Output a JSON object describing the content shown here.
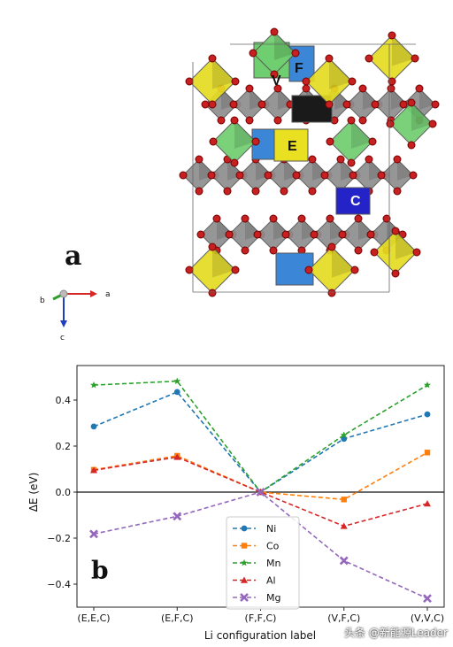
{
  "figure": {
    "panel_a_label": "a",
    "panel_b_label": "b",
    "axes_indicator": {
      "a": "a",
      "b": "b",
      "c": "c"
    },
    "site_labels": [
      "V",
      "F",
      "E",
      "C"
    ],
    "watermark": "头条 @新能源Leader"
  },
  "chart_data": {
    "type": "line",
    "title": "",
    "xlabel": "Li configuration label",
    "ylabel": "ΔE (eV)",
    "categories": [
      "(E,E,C)",
      "(E,F,C)",
      "(F,F,C)",
      "(V,F,C)",
      "(V,V,C)"
    ],
    "ylim": [
      -0.5,
      0.55
    ],
    "yticks": [
      -0.4,
      -0.2,
      0.0,
      0.2,
      0.4
    ],
    "ytick_labels": [
      "−0.4",
      "−0.2",
      "0.0",
      "0.2",
      "0.4"
    ],
    "grid": false,
    "legend_position": "lower-center",
    "series": [
      {
        "name": "Ni",
        "color": "#1f77b4",
        "marker": "circle",
        "values": [
          0.285,
          0.435,
          0.0,
          0.232,
          0.338
        ]
      },
      {
        "name": "Co",
        "color": "#ff7f0e",
        "marker": "square",
        "values": [
          0.097,
          0.158,
          0.0,
          -0.032,
          0.172
        ]
      },
      {
        "name": "Mn",
        "color": "#2ca02c",
        "marker": "star",
        "values": [
          0.465,
          0.482,
          0.0,
          0.248,
          0.465
        ]
      },
      {
        "name": "Al",
        "color": "#d62728",
        "marker": "triangle",
        "values": [
          0.095,
          0.152,
          0.0,
          -0.148,
          -0.05
        ]
      },
      {
        "name": "Mg",
        "color": "#9467bd",
        "marker": "x",
        "values": [
          -0.182,
          -0.105,
          0.0,
          -0.298,
          -0.462
        ]
      }
    ]
  }
}
